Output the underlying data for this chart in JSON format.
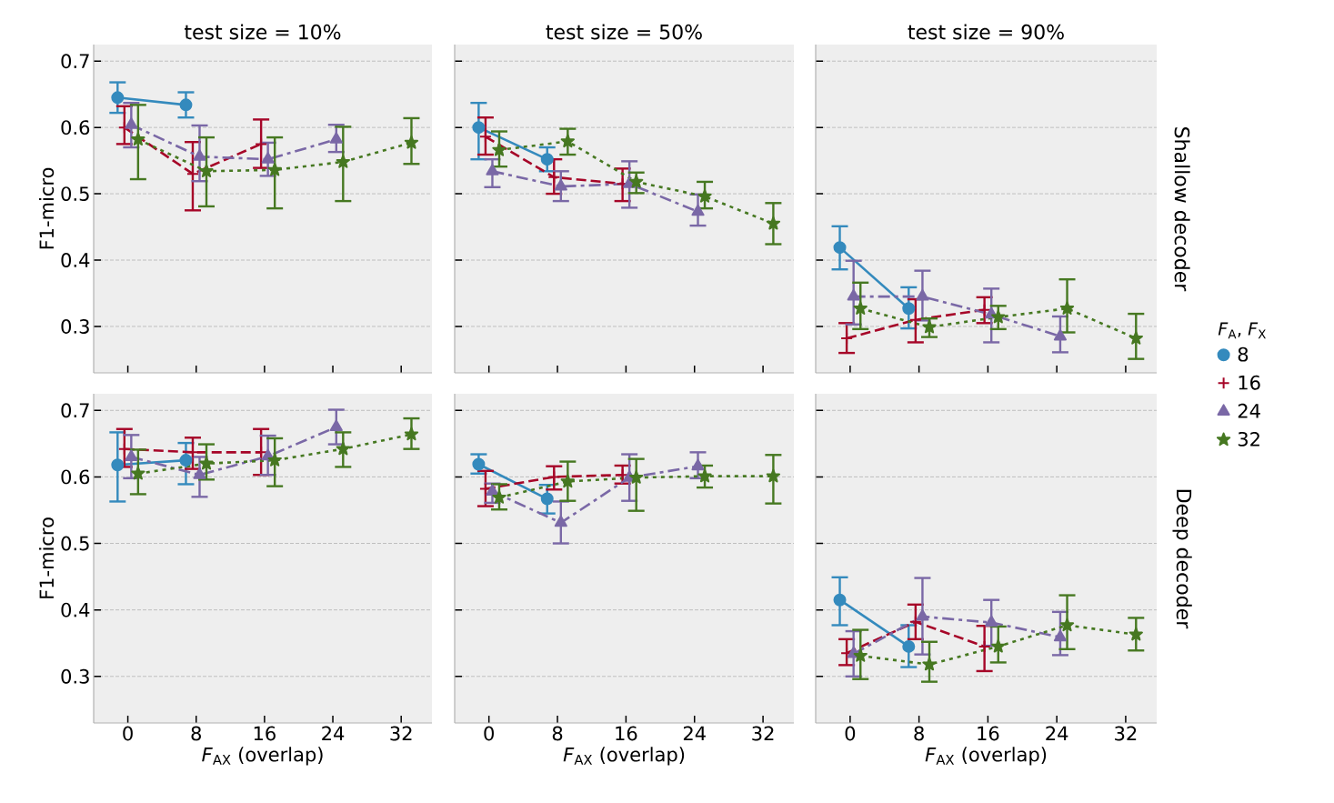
{
  "chart_data": [
    {
      "type": "line",
      "title": "test size = 10%",
      "ylabel": "F1-micro",
      "categories": [
        "0",
        "8",
        "16",
        "24",
        "32"
      ],
      "ylim": [
        0.23,
        0.725
      ],
      "yticks": [
        0.3,
        0.4,
        0.5,
        0.6,
        0.7
      ],
      "grid": "y",
      "tick_labels": "y",
      "series": [
        {
          "color": "#348abd",
          "marker": "circle",
          "line_style": "solid",
          "values": [
            0.645,
            0.634,
            null,
            null,
            null
          ],
          "errors": [
            [
              0.622,
              0.668
            ],
            [
              0.615,
              0.653
            ],
            null,
            null,
            null
          ]
        },
        {
          "color": "#a60628",
          "marker": "cross",
          "line_style": "dashed",
          "values": [
            0.6,
            0.53,
            0.575,
            null,
            null
          ],
          "errors": [
            [
              0.575,
              0.632
            ],
            [
              0.475,
              0.578
            ],
            [
              0.539,
              0.612
            ],
            null,
            null
          ]
        },
        {
          "color": "#7a68a6",
          "marker": "triangle",
          "line_style": "dashdot",
          "values": [
            0.604,
            0.556,
            0.552,
            0.582,
            null
          ],
          "errors": [
            [
              0.57,
              0.637
            ],
            [
              0.519,
              0.603
            ],
            [
              0.527,
              0.577
            ],
            [
              0.563,
              0.604
            ],
            null
          ]
        },
        {
          "color": "#467821",
          "marker": "star",
          "line_style": "dotted",
          "values": [
            0.582,
            0.534,
            0.536,
            0.548,
            0.577
          ],
          "errors": [
            [
              0.522,
              0.634
            ],
            [
              0.481,
              0.585
            ],
            [
              0.478,
              0.585
            ],
            [
              0.489,
              0.601
            ],
            [
              0.545,
              0.614
            ]
          ]
        }
      ]
    },
    {
      "type": "line",
      "title": "test size = 50%",
      "categories": [
        "0",
        "8",
        "16",
        "24",
        "32"
      ],
      "ylim": [
        0.23,
        0.725
      ],
      "yticks": [
        0.3,
        0.4,
        0.5,
        0.6,
        0.7
      ],
      "grid": "y",
      "tick_labels": false,
      "series": [
        {
          "color": "#348abd",
          "marker": "circle",
          "line_style": "solid",
          "values": [
            0.6,
            0.552,
            null,
            null,
            null
          ],
          "errors": [
            [
              0.552,
              0.637
            ],
            [
              0.534,
              0.57
            ],
            null,
            null,
            null
          ]
        },
        {
          "color": "#a60628",
          "marker": "cross",
          "line_style": "dashed",
          "values": [
            0.586,
            0.525,
            0.515,
            null,
            null
          ],
          "errors": [
            [
              0.559,
              0.615
            ],
            [
              0.5,
              0.552
            ],
            [
              0.489,
              0.538
            ],
            null,
            null
          ]
        },
        {
          "color": "#7a68a6",
          "marker": "triangle",
          "line_style": "dashdot",
          "values": [
            0.534,
            0.511,
            0.515,
            0.473,
            null
          ],
          "errors": [
            [
              0.51,
              0.552
            ],
            [
              0.489,
              0.534
            ],
            [
              0.479,
              0.549
            ],
            [
              0.452,
              0.499
            ],
            null
          ]
        },
        {
          "color": "#467821",
          "marker": "star",
          "line_style": "dotted",
          "values": [
            0.566,
            0.579,
            0.518,
            0.496,
            0.455
          ],
          "errors": [
            [
              0.541,
              0.594
            ],
            [
              0.559,
              0.598
            ],
            [
              0.501,
              0.532
            ],
            [
              0.478,
              0.518
            ],
            [
              0.424,
              0.486
            ]
          ]
        }
      ]
    },
    {
      "type": "line",
      "title": "test size = 90%",
      "categories": [
        "0",
        "8",
        "16",
        "24",
        "32"
      ],
      "ylim": [
        0.23,
        0.725
      ],
      "yticks": [
        0.3,
        0.4,
        0.5,
        0.6,
        0.7
      ],
      "grid": "y",
      "tick_labels": false,
      "legend": "right",
      "legend_title": "*F*$_{A}$, *F*$_{X}$",
      "annotations": [
        "Shallow decoder"
      ],
      "series": [
        {
          "name": "8",
          "color": "#348abd",
          "marker": "circle",
          "line_style": "solid",
          "values": [
            0.419,
            0.327,
            null,
            null,
            null
          ],
          "errors": [
            [
              0.386,
              0.451
            ],
            [
              0.297,
              0.359
            ],
            null,
            null,
            null
          ]
        },
        {
          "name": "16",
          "color": "#a60628",
          "marker": "cross",
          "line_style": "dashed",
          "values": [
            0.282,
            0.31,
            0.325,
            null,
            null
          ],
          "errors": [
            [
              0.26,
              0.305
            ],
            [
              0.276,
              0.341
            ],
            [
              0.305,
              0.344
            ],
            null,
            null
          ]
        },
        {
          "name": "24",
          "color": "#7a68a6",
          "marker": "triangle",
          "line_style": "dashdot",
          "values": [
            0.345,
            0.345,
            0.318,
            0.285,
            null
          ],
          "errors": [
            [
              0.303,
              0.399
            ],
            [
              0.309,
              0.384
            ],
            [
              0.276,
              0.357
            ],
            [
              0.261,
              0.315
            ],
            null
          ]
        },
        {
          "name": "32",
          "color": "#467821",
          "marker": "star",
          "line_style": "dotted",
          "values": [
            0.327,
            0.299,
            0.314,
            0.327,
            0.282
          ],
          "errors": [
            [
              0.296,
              0.366
            ],
            [
              0.284,
              0.312
            ],
            [
              0.296,
              0.331
            ],
            [
              0.291,
              0.371
            ],
            [
              0.251,
              0.319
            ]
          ]
        }
      ]
    },
    {
      "type": "line",
      "xlabel": "*F*$_{AX}$ (overlap)",
      "ylabel": "F1-micro",
      "categories": [
        "0",
        "8",
        "16",
        "24",
        "32"
      ],
      "ylim": [
        0.23,
        0.725
      ],
      "yticks": [
        0.3,
        0.4,
        0.5,
        0.6,
        0.7
      ],
      "grid": "y",
      "series": [
        {
          "color": "#348abd",
          "marker": "circle",
          "line_style": "solid",
          "values": [
            0.618,
            0.625,
            null,
            null,
            null
          ],
          "errors": [
            [
              0.563,
              0.667
            ],
            [
              0.589,
              0.651
            ],
            null,
            null,
            null
          ]
        },
        {
          "color": "#a60628",
          "marker": "cross",
          "line_style": "dashed",
          "values": [
            0.642,
            0.637,
            0.637,
            null,
            null
          ],
          "errors": [
            [
              0.615,
              0.672
            ],
            [
              0.612,
              0.659
            ],
            [
              0.603,
              0.672
            ],
            null,
            null
          ]
        },
        {
          "color": "#7a68a6",
          "marker": "triangle",
          "line_style": "dashdot",
          "values": [
            0.63,
            0.603,
            0.631,
            0.675,
            null
          ],
          "errors": [
            [
              0.598,
              0.663
            ],
            [
              0.57,
              0.63
            ],
            [
              0.603,
              0.662
            ],
            [
              0.649,
              0.701
            ],
            null
          ]
        },
        {
          "color": "#467821",
          "marker": "star",
          "line_style": "dotted",
          "values": [
            0.605,
            0.62,
            0.625,
            0.642,
            0.664
          ],
          "errors": [
            [
              0.574,
              0.641
            ],
            [
              0.596,
              0.649
            ],
            [
              0.586,
              0.658
            ],
            [
              0.615,
              0.667
            ],
            [
              0.642,
              0.688
            ]
          ]
        }
      ]
    },
    {
      "type": "line",
      "xlabel": "*F*$_{AX}$ (overlap)",
      "categories": [
        "0",
        "8",
        "16",
        "24",
        "32"
      ],
      "ylim": [
        0.23,
        0.725
      ],
      "yticks": [
        0.3,
        0.4,
        0.5,
        0.6,
        0.7
      ],
      "grid": "y",
      "tick_labels": "x",
      "series": [
        {
          "color": "#348abd",
          "marker": "circle",
          "line_style": "solid",
          "values": [
            0.619,
            0.567,
            null,
            null,
            null
          ],
          "errors": [
            [
              0.605,
              0.634
            ],
            [
              0.545,
              0.588
            ],
            null,
            null,
            null
          ]
        },
        {
          "color": "#a60628",
          "marker": "cross",
          "line_style": "dashed",
          "values": [
            0.582,
            0.6,
            0.603,
            null,
            null
          ],
          "errors": [
            [
              0.556,
              0.609
            ],
            [
              0.581,
              0.616
            ],
            [
              0.59,
              0.617
            ],
            null,
            null
          ]
        },
        {
          "color": "#7a68a6",
          "marker": "triangle",
          "line_style": "dashdot",
          "values": [
            0.578,
            0.531,
            0.599,
            0.616,
            null
          ],
          "errors": [
            [
              0.561,
              0.59
            ],
            [
              0.5,
              0.563
            ],
            [
              0.564,
              0.634
            ],
            [
              0.598,
              0.637
            ],
            null
          ]
        },
        {
          "color": "#467821",
          "marker": "star",
          "line_style": "dotted",
          "values": [
            0.569,
            0.593,
            0.599,
            0.601,
            0.601
          ],
          "errors": [
            [
              0.551,
              0.589
            ],
            [
              0.564,
              0.623
            ],
            [
              0.549,
              0.627
            ],
            [
              0.584,
              0.617
            ],
            [
              0.56,
              0.633
            ]
          ]
        }
      ]
    },
    {
      "type": "line",
      "xlabel": "*F*$_{AX}$ (overlap)",
      "categories": [
        "0",
        "8",
        "16",
        "24",
        "32"
      ],
      "ylim": [
        0.23,
        0.725
      ],
      "yticks": [
        0.3,
        0.4,
        0.5,
        0.6,
        0.7
      ],
      "grid": "y",
      "tick_labels": "x",
      "annotations": [
        "Deep decoder"
      ],
      "series": [
        {
          "color": "#348abd",
          "marker": "circle",
          "line_style": "solid",
          "values": [
            0.415,
            0.345,
            null,
            null,
            null
          ],
          "errors": [
            [
              0.377,
              0.449
            ],
            [
              0.314,
              0.377
            ],
            null,
            null,
            null
          ]
        },
        {
          "color": "#a60628",
          "marker": "cross",
          "line_style": "dashed",
          "values": [
            0.335,
            0.382,
            0.345,
            null,
            null
          ],
          "errors": [
            [
              0.317,
              0.356
            ],
            [
              0.356,
              0.408
            ],
            [
              0.308,
              0.376
            ],
            null,
            null
          ]
        },
        {
          "color": "#7a68a6",
          "marker": "triangle",
          "line_style": "dashdot",
          "values": [
            0.334,
            0.39,
            0.381,
            0.359,
            null
          ],
          "errors": [
            [
              0.3,
              0.368
            ],
            [
              0.333,
              0.448
            ],
            [
              0.346,
              0.415
            ],
            [
              0.332,
              0.397
            ],
            null
          ]
        },
        {
          "color": "#467821",
          "marker": "star",
          "line_style": "dotted",
          "values": [
            0.331,
            0.318,
            0.345,
            0.377,
            0.363
          ],
          "errors": [
            [
              0.296,
              0.37
            ],
            [
              0.292,
              0.352
            ],
            [
              0.321,
              0.375
            ],
            [
              0.341,
              0.422
            ],
            [
              0.339,
              0.388
            ]
          ]
        }
      ]
    }
  ]
}
